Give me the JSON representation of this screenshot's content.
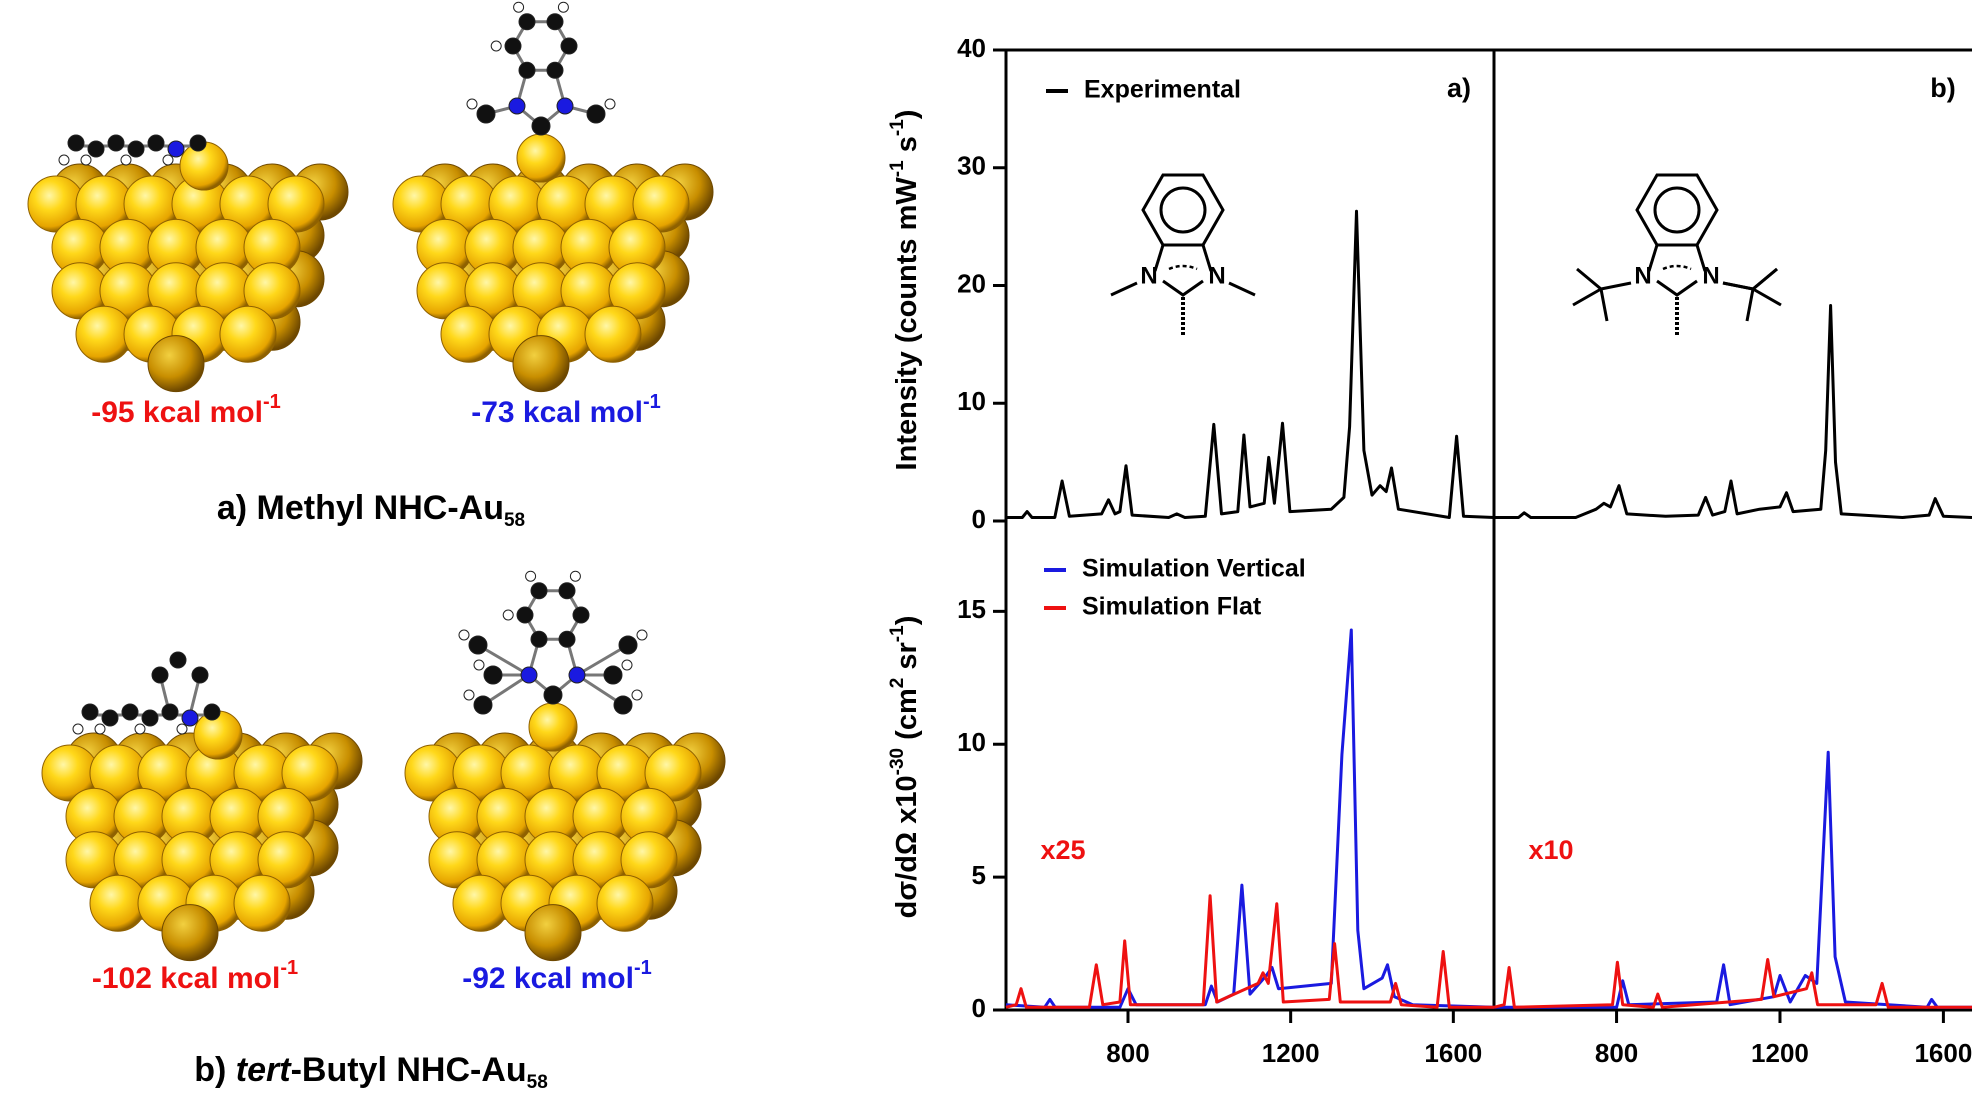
{
  "structures": {
    "energies": [
      {
        "text": "-95 kcal mol",
        "sup": "-1",
        "color": "#ee1111"
      },
      {
        "text": "-73 kcal mol",
        "sup": "-1",
        "color": "#1a1ae0"
      },
      {
        "text": "-102 kcal mol",
        "sup": "-1",
        "color": "#ee1111"
      },
      {
        "text": "-92 kcal mol",
        "sup": "-1",
        "color": "#1a1ae0"
      }
    ],
    "captions": [
      {
        "prefix": "a) ",
        "text": "Methyl NHC-Au",
        "sub": "58"
      },
      {
        "prefix": "b) ",
        "italic": "tert",
        "text": "-Butyl NHC-Au",
        "sub": "58"
      }
    ]
  },
  "insets": [
    {
      "atoms": [
        "N",
        "N"
      ]
    },
    {
      "atoms": [
        "N",
        "N"
      ]
    }
  ],
  "chart_data": [
    {
      "type": "line",
      "ylabel": [
        "Intensity (counts mW",
        "-1",
        " s",
        "-1",
        ")"
      ],
      "annotation": "a)",
      "annotation_color": "#000000",
      "xlim": [
        500,
        1700
      ],
      "ylim": [
        0,
        40
      ],
      "yticks": [
        0,
        10,
        20,
        30,
        40
      ],
      "series": [
        {
          "name": "Experimental",
          "color": "#000000",
          "x": [
            500,
            540,
            552,
            564,
            620,
            638,
            656,
            735,
            752,
            768,
            780,
            795,
            810,
            900,
            920,
            940,
            990,
            1011,
            1030,
            1070,
            1085,
            1100,
            1135,
            1146,
            1160,
            1180,
            1198,
            1300,
            1331,
            1345,
            1362,
            1380,
            1400,
            1420,
            1435,
            1448,
            1465,
            1590,
            1608,
            1625,
            1700
          ],
          "values": [
            0.3,
            0.3,
            0.8,
            0.3,
            0.3,
            3.4,
            0.4,
            0.6,
            1.8,
            0.6,
            0.8,
            4.7,
            0.5,
            0.3,
            0.6,
            0.3,
            0.4,
            8.2,
            0.6,
            0.8,
            7.3,
            1.2,
            1.5,
            5.4,
            1.5,
            8.3,
            0.8,
            1.0,
            2.0,
            8,
            26.3,
            6,
            2.2,
            3.0,
            2.5,
            4.5,
            1.0,
            0.3,
            7.2,
            0.4,
            0.3
          ]
        }
      ]
    },
    {
      "type": "line",
      "annotation": "b)",
      "annotation_color": "#000000",
      "xlim": [
        500,
        1670
      ],
      "ylim": [
        0,
        40
      ],
      "series": [
        {
          "color": "#000000",
          "x": [
            500,
            560,
            574,
            590,
            700,
            750,
            769,
            785,
            806,
            825,
            920,
            1000,
            1018,
            1035,
            1065,
            1080,
            1095,
            1150,
            1200,
            1216,
            1232,
            1300,
            1312,
            1324,
            1336,
            1350,
            1500,
            1565,
            1580,
            1600,
            1670
          ],
          "values": [
            0.3,
            0.3,
            0.7,
            0.3,
            0.3,
            1.0,
            1.5,
            1.2,
            3.0,
            0.6,
            0.4,
            0.5,
            2.0,
            0.5,
            0.8,
            3.4,
            0.6,
            1.0,
            1.2,
            2.4,
            0.8,
            1.0,
            6,
            18.3,
            5,
            0.6,
            0.3,
            0.5,
            1.9,
            0.4,
            0.3
          ]
        }
      ]
    },
    {
      "type": "line",
      "ylabel": [
        "dσ/dΩ x10",
        "-30",
        " (cm",
        "2",
        " sr",
        "-1",
        ")"
      ],
      "annotation": "x25",
      "annotation_color": "#ee1111",
      "xlim": [
        500,
        1700
      ],
      "ylim": [
        0,
        18.4
      ],
      "yticks": [
        0,
        5,
        10,
        15
      ],
      "xticks": [
        800,
        1200,
        1600
      ],
      "series": [
        {
          "name": "Simulation Vertical",
          "color": "#1a1ae0",
          "x": [
            500,
            595,
            608,
            621,
            780,
            800,
            820,
            990,
            1005,
            1020,
            1060,
            1080,
            1100,
            1140,
            1154,
            1170,
            1300,
            1326,
            1349,
            1365,
            1380,
            1425,
            1438,
            1455,
            1500,
            1700
          ],
          "values": [
            0.2,
            0.1,
            0.4,
            0.1,
            0.1,
            0.8,
            0.2,
            0.2,
            0.9,
            0.3,
            0.6,
            4.7,
            0.6,
            1.3,
            1.6,
            0.8,
            1.0,
            9.6,
            14.3,
            3,
            0.8,
            1.2,
            1.7,
            0.5,
            0.2,
            0.1
          ]
        },
        {
          "name": "Simulation Flat",
          "color": "#ee1111",
          "x": [
            500,
            525,
            537,
            550,
            705,
            722,
            738,
            780,
            792,
            806,
            985,
            1002,
            1018,
            1120,
            1132,
            1145,
            1166,
            1182,
            1295,
            1308,
            1322,
            1445,
            1458,
            1472,
            1560,
            1575,
            1590,
            1700
          ],
          "values": [
            0.1,
            0.2,
            0.8,
            0.1,
            0.1,
            1.7,
            0.2,
            0.3,
            2.6,
            0.2,
            0.2,
            4.3,
            0.3,
            1.0,
            1.4,
            1.0,
            4.0,
            0.3,
            0.4,
            2.5,
            0.3,
            0.3,
            1.0,
            0.2,
            0.1,
            2.2,
            0.1,
            0.1
          ]
        }
      ]
    },
    {
      "type": "line",
      "annotation": "x10",
      "annotation_color": "#ee1111",
      "xlim": [
        500,
        1670
      ],
      "ylim": [
        0,
        18.4
      ],
      "xticks": [
        800,
        1200,
        1600
      ],
      "series": [
        {
          "color": "#1a1ae0",
          "x": [
            500,
            800,
            815,
            830,
            1045,
            1062,
            1078,
            1185,
            1200,
            1225,
            1262,
            1290,
            1318,
            1335,
            1360,
            1560,
            1571,
            1585,
            1670
          ],
          "values": [
            0.1,
            0.1,
            1.1,
            0.2,
            0.3,
            1.7,
            0.2,
            0.5,
            1.3,
            0.3,
            1.3,
            1.0,
            9.7,
            2,
            0.3,
            0.1,
            0.4,
            0.1,
            0.1
          ]
        },
        {
          "color": "#ee1111",
          "x": [
            500,
            525,
            537,
            550,
            790,
            802,
            815,
            890,
            901,
            912,
            1155,
            1170,
            1185,
            1265,
            1278,
            1292,
            1435,
            1450,
            1465,
            1670
          ],
          "values": [
            0.1,
            0.2,
            1.6,
            0.1,
            0.2,
            1.8,
            0.2,
            0.1,
            0.6,
            0.1,
            0.4,
            1.9,
            0.5,
            0.8,
            1.4,
            0.2,
            0.2,
            1.0,
            0.1,
            0.1
          ]
        }
      ]
    }
  ]
}
